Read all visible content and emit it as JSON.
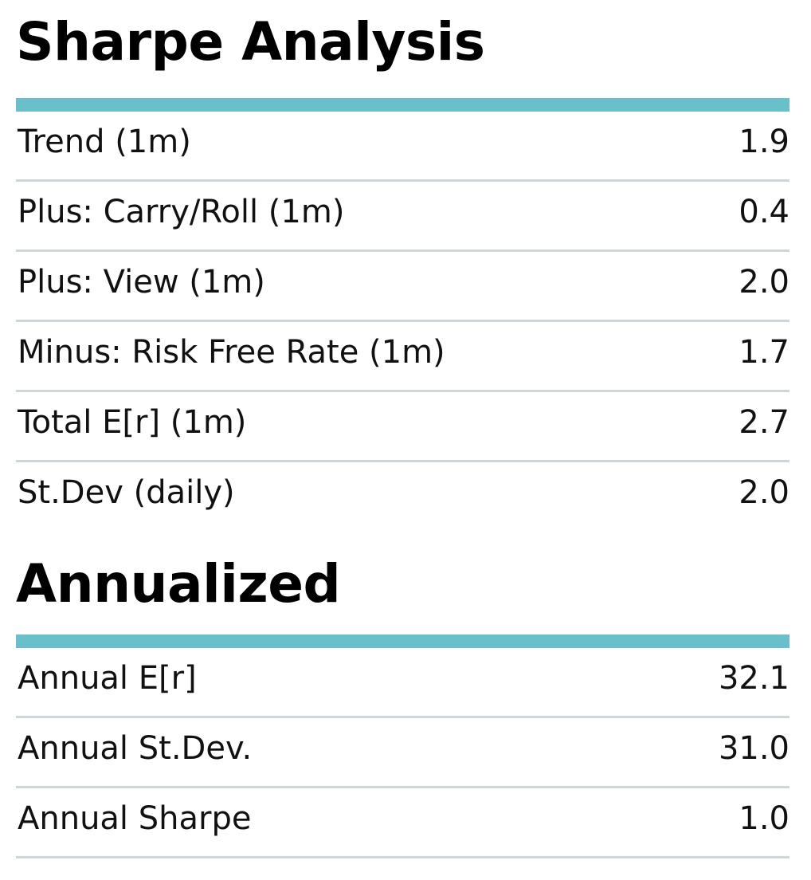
{
  "sharpe_analysis": {
    "title": "Sharpe Analysis",
    "rows": [
      {
        "label": "Trend (1m)",
        "value": "1.9"
      },
      {
        "label": "Plus: Carry/Roll (1m)",
        "value": "0.4"
      },
      {
        "label": "Plus: View (1m)",
        "value": "2.0"
      },
      {
        "label": "Minus: Risk Free Rate (1m)",
        "value": "1.7"
      },
      {
        "label": "Total E[r] (1m)",
        "value": "2.7"
      },
      {
        "label": "St.Dev (daily)",
        "value": "2.0"
      }
    ]
  },
  "annualized": {
    "title": "Annualized",
    "rows": [
      {
        "label": "Annual E[r]",
        "value": "32.1"
      },
      {
        "label": "Annual St.Dev.",
        "value": "31.0"
      },
      {
        "label": "Annual Sharpe",
        "value": "1.0"
      }
    ]
  },
  "colors": {
    "accent_bar": "#69bfca",
    "row_rule": "#cfd6da",
    "text": "#111111"
  }
}
